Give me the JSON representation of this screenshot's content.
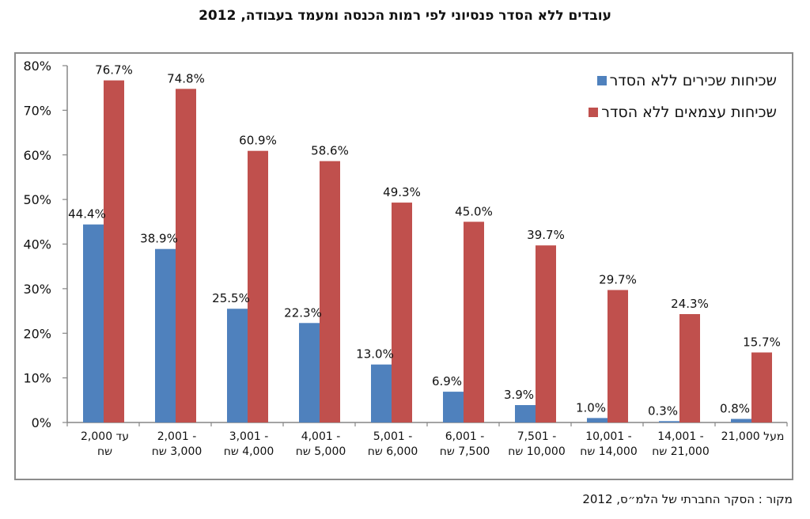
{
  "chart_data": {
    "type": "bar",
    "title": "עובדים ללא הסדר פנסיוני לפי רמות הכנסה ומעמד בעבודה, 2012",
    "xlabel": "",
    "ylabel": "",
    "ylim": [
      0,
      80
    ],
    "yticks": [
      "0%",
      "10%",
      "20%",
      "30%",
      "40%",
      "50%",
      "60%",
      "70%",
      "80%"
    ],
    "ytick_values": [
      0,
      10,
      20,
      30,
      40,
      50,
      60,
      70,
      80
    ],
    "grid": false,
    "legend_position": "top-right",
    "categories": [
      [
        "עד 2,000",
        "שח"
      ],
      [
        "- 2,001",
        "3,000 שח"
      ],
      [
        "- 3,001",
        "4,000 שח"
      ],
      [
        "- 4,001",
        "5,000 שח"
      ],
      [
        "- 5,001",
        "6,000 שח"
      ],
      [
        "- 6,001",
        "7,500 שח"
      ],
      [
        "- 7,501",
        "10,000 שח"
      ],
      [
        "- 10,001",
        "14,000 שח"
      ],
      [
        "- 14,001",
        "21,000 שח"
      ],
      [
        "מעל 21,000",
        ""
      ]
    ],
    "series": [
      {
        "name": "שכיחות שכירים ללא הסדר",
        "color": "#4F81BD",
        "values": [
          44.4,
          38.9,
          25.5,
          22.3,
          13.0,
          6.9,
          3.9,
          1.0,
          0.3,
          0.8
        ],
        "labels": [
          "44.4%",
          "38.9%",
          "25.5%",
          "22.3%",
          "13.0%",
          "6.9%",
          "3.9%",
          "1.0%",
          "0.3%",
          "0.8%"
        ]
      },
      {
        "name": "שכיחות עצמאים ללא הסדר",
        "color": "#C0504D",
        "values": [
          76.7,
          74.8,
          60.9,
          58.6,
          49.3,
          45.0,
          39.7,
          29.7,
          24.3,
          15.7
        ],
        "labels": [
          "76.7%",
          "74.8%",
          "60.9%",
          "58.6%",
          "49.3%",
          "45.0%",
          "39.7%",
          "29.7%",
          "24.3%",
          "15.7%"
        ]
      }
    ],
    "source": "מקור : הסקר החברתי של הלמ״ס, 2012"
  }
}
